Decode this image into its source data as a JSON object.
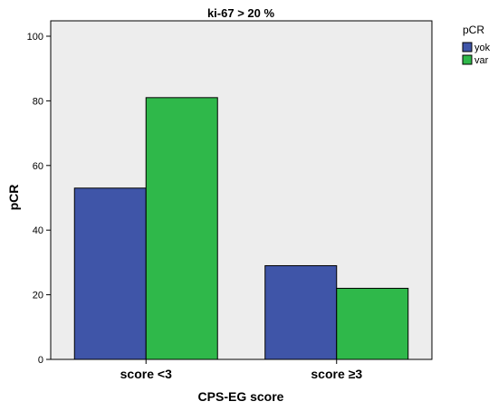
{
  "chart_data": {
    "type": "bar",
    "title": "ki-67 > 20 %",
    "xlabel": "CPS-EG score",
    "ylabel": "pCR",
    "categories": [
      "score <3",
      "score ≥3"
    ],
    "series": [
      {
        "name": "yok",
        "color": "#3F55A8",
        "values": [
          53,
          29
        ]
      },
      {
        "name": "var",
        "color": "#2FB84A",
        "values": [
          81,
          22
        ]
      }
    ],
    "ylim": [
      0,
      100
    ],
    "yticks": [
      0,
      20,
      40,
      60,
      80,
      100
    ],
    "grid": false,
    "legend": {
      "title": "pCR",
      "position": "top-right"
    },
    "plot_background": "#EDEDED"
  }
}
